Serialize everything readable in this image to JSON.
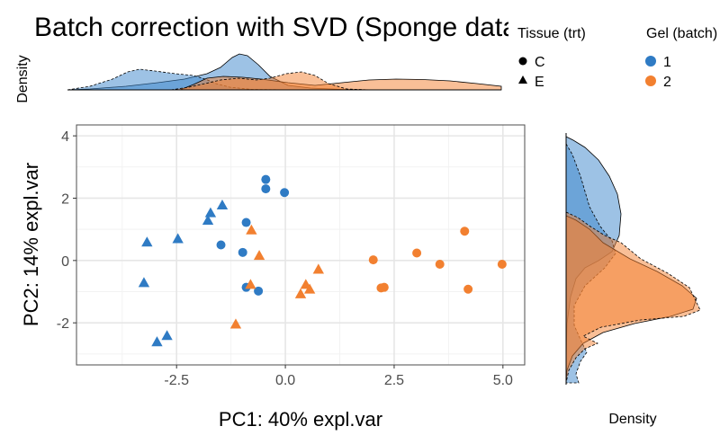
{
  "chart_data": {
    "type": "scatter",
    "title": "Batch correction with SVD (Sponge data)",
    "xlabel": "PC1: 40% expl.var",
    "ylabel": "PC2: 14% expl.var",
    "xlim": [
      -4.8,
      5.5
    ],
    "ylim": [
      -3.35,
      4.35
    ],
    "x_ticks": [
      -2.5,
      0.0,
      2.5,
      5.0
    ],
    "x_tick_labels": [
      "-2.5",
      "0.0",
      "2.5",
      "5.0"
    ],
    "y_ticks": [
      -2,
      0,
      2,
      4
    ],
    "y_tick_labels": [
      "-2",
      "0",
      "2",
      "4"
    ],
    "grid": true,
    "legend_shape": {
      "title": "Tissue (trt)",
      "entries": [
        {
          "label": "C",
          "shape": "circle"
        },
        {
          "label": "E",
          "shape": "triangle"
        }
      ]
    },
    "legend_color": {
      "title": "Gel (batch)",
      "entries": [
        {
          "label": "1",
          "color": "#2f7bc4"
        },
        {
          "label": "2",
          "color": "#f28030"
        }
      ]
    },
    "top_density_label": "Density",
    "right_density_label": "Density",
    "points": [
      {
        "x": -0.45,
        "y": 2.6,
        "tissue": "C",
        "gel": "1"
      },
      {
        "x": -0.45,
        "y": 2.3,
        "tissue": "C",
        "gel": "1"
      },
      {
        "x": -0.02,
        "y": 2.18,
        "tissue": "C",
        "gel": "1"
      },
      {
        "x": -0.9,
        "y": 1.22,
        "tissue": "C",
        "gel": "1"
      },
      {
        "x": -1.48,
        "y": 0.5,
        "tissue": "C",
        "gel": "1"
      },
      {
        "x": -0.98,
        "y": 0.26,
        "tissue": "C",
        "gel": "1"
      },
      {
        "x": -0.9,
        "y": -0.86,
        "tissue": "C",
        "gel": "1"
      },
      {
        "x": -0.62,
        "y": -0.98,
        "tissue": "C",
        "gel": "1"
      },
      {
        "x": -1.45,
        "y": 1.77,
        "tissue": "E",
        "gel": "1"
      },
      {
        "x": -1.72,
        "y": 1.52,
        "tissue": "E",
        "gel": "1"
      },
      {
        "x": -1.78,
        "y": 1.28,
        "tissue": "E",
        "gel": "1"
      },
      {
        "x": -2.47,
        "y": 0.69,
        "tissue": "E",
        "gel": "1"
      },
      {
        "x": -3.18,
        "y": 0.58,
        "tissue": "E",
        "gel": "1"
      },
      {
        "x": -3.25,
        "y": -0.72,
        "tissue": "E",
        "gel": "1"
      },
      {
        "x": -2.72,
        "y": -2.42,
        "tissue": "E",
        "gel": "1"
      },
      {
        "x": -2.95,
        "y": -2.62,
        "tissue": "E",
        "gel": "1"
      },
      {
        "x": 2.02,
        "y": 0.02,
        "tissue": "C",
        "gel": "2"
      },
      {
        "x": 3.02,
        "y": 0.24,
        "tissue": "C",
        "gel": "2"
      },
      {
        "x": 4.12,
        "y": 0.94,
        "tissue": "C",
        "gel": "2"
      },
      {
        "x": 3.55,
        "y": -0.12,
        "tissue": "C",
        "gel": "2"
      },
      {
        "x": 4.98,
        "y": -0.12,
        "tissue": "C",
        "gel": "2"
      },
      {
        "x": 2.2,
        "y": -0.88,
        "tissue": "C",
        "gel": "2"
      },
      {
        "x": 2.27,
        "y": -0.86,
        "tissue": "C",
        "gel": "2"
      },
      {
        "x": 4.2,
        "y": -0.92,
        "tissue": "C",
        "gel": "2"
      },
      {
        "x": -0.78,
        "y": 0.97,
        "tissue": "E",
        "gel": "2"
      },
      {
        "x": -0.6,
        "y": 0.15,
        "tissue": "E",
        "gel": "2"
      },
      {
        "x": 0.76,
        "y": -0.29,
        "tissue": "E",
        "gel": "2"
      },
      {
        "x": -0.8,
        "y": -0.78,
        "tissue": "E",
        "gel": "2"
      },
      {
        "x": 0.47,
        "y": -0.78,
        "tissue": "E",
        "gel": "2"
      },
      {
        "x": 0.56,
        "y": -0.93,
        "tissue": "E",
        "gel": "2"
      },
      {
        "x": 0.35,
        "y": -1.08,
        "tissue": "E",
        "gel": "2"
      },
      {
        "x": -1.14,
        "y": -2.05,
        "tissue": "E",
        "gel": "2"
      }
    ]
  }
}
